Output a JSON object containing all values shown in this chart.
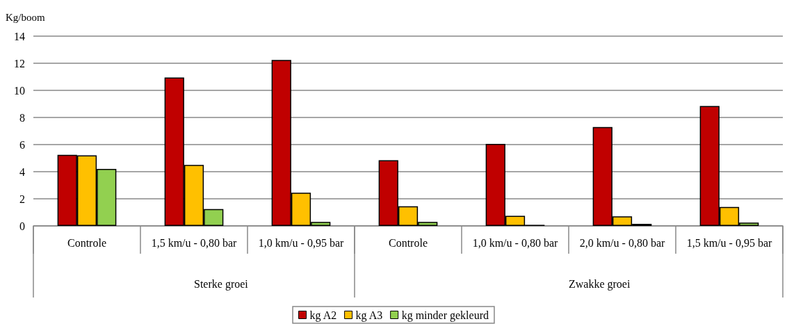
{
  "chart_data": {
    "type": "bar",
    "ylabel": "Kg/boom",
    "categories": [
      "Controle",
      "1,5 km/u - 0,80 bar",
      "1,0 km/u - 0,95 bar",
      "Controle",
      "1,0 km/u - 0,80 bar",
      "2,0 km/u - 0,80 bar",
      "1,5 km/u - 0,95 bar"
    ],
    "series": [
      {
        "name": "kg A2",
        "color": "#c00000",
        "values": [
          5.25,
          10.95,
          12.25,
          4.85,
          6.05,
          7.3,
          8.85
        ]
      },
      {
        "name": "kg A3",
        "color": "#ffc000",
        "values": [
          5.2,
          4.5,
          2.45,
          1.45,
          0.75,
          0.7,
          1.4
        ]
      },
      {
        "name": "kg minder gekleurd",
        "color": "#92d050",
        "values": [
          4.2,
          1.25,
          0.3,
          0.3,
          0.08,
          0.15,
          0.25
        ]
      }
    ],
    "annotations": [
      "Sterke groei",
      "Zwakke groei"
    ],
    "ylim": [
      0,
      14
    ],
    "yticks": [
      0,
      2,
      4,
      6,
      8,
      10,
      12,
      14
    ],
    "grid": "y",
    "legend": "bottom"
  }
}
